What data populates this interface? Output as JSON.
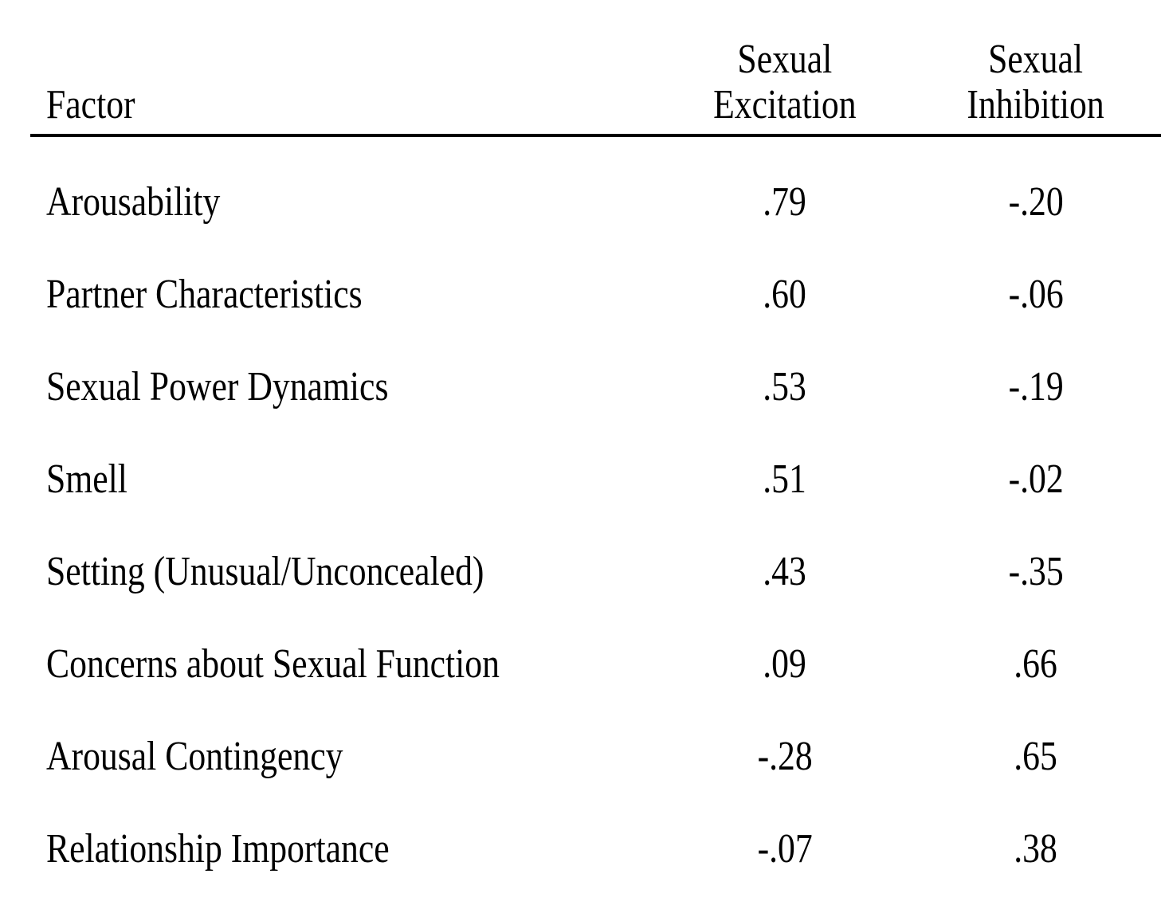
{
  "colors": {
    "background": "#ffffff",
    "text": "#000000",
    "rule": "#000000"
  },
  "table": {
    "header": {
      "factor": "Factor",
      "excitation": "Sexual\nExcitation",
      "inhibition": "Sexual\nInhibition"
    },
    "rows": [
      {
        "factor": "Arousability",
        "excitation": ".79",
        "inhibition": "-.20"
      },
      {
        "factor": "Partner Characteristics",
        "excitation": ".60",
        "inhibition": "-.06"
      },
      {
        "factor": "Sexual Power Dynamics",
        "excitation": ".53",
        "inhibition": "-.19"
      },
      {
        "factor": "Smell",
        "excitation": ".51",
        "inhibition": "-.02"
      },
      {
        "factor": "Setting (Unusual/Unconcealed)",
        "excitation": ".43",
        "inhibition": "-.35"
      },
      {
        "factor": "Concerns about Sexual Function",
        "excitation": ".09",
        "inhibition": ".66"
      },
      {
        "factor": "Arousal Contingency",
        "excitation": "-.28",
        "inhibition": ".65"
      },
      {
        "factor": "Relationship Importance",
        "excitation": "-.07",
        "inhibition": ".38"
      }
    ]
  },
  "chart_data": {
    "type": "table",
    "columns": [
      "Factor",
      "Sexual Excitation",
      "Sexual Inhibition"
    ],
    "rows": [
      [
        "Arousability",
        0.79,
        -0.2
      ],
      [
        "Partner Characteristics",
        0.6,
        -0.06
      ],
      [
        "Sexual Power Dynamics",
        0.53,
        -0.19
      ],
      [
        "Smell",
        0.51,
        -0.02
      ],
      [
        "Setting (Unusual/Unconcealed)",
        0.43,
        -0.35
      ],
      [
        "Concerns about Sexual Function",
        0.09,
        0.66
      ],
      [
        "Arousal Contingency",
        -0.28,
        0.65
      ],
      [
        "Relationship Importance",
        -0.07,
        0.38
      ]
    ]
  }
}
